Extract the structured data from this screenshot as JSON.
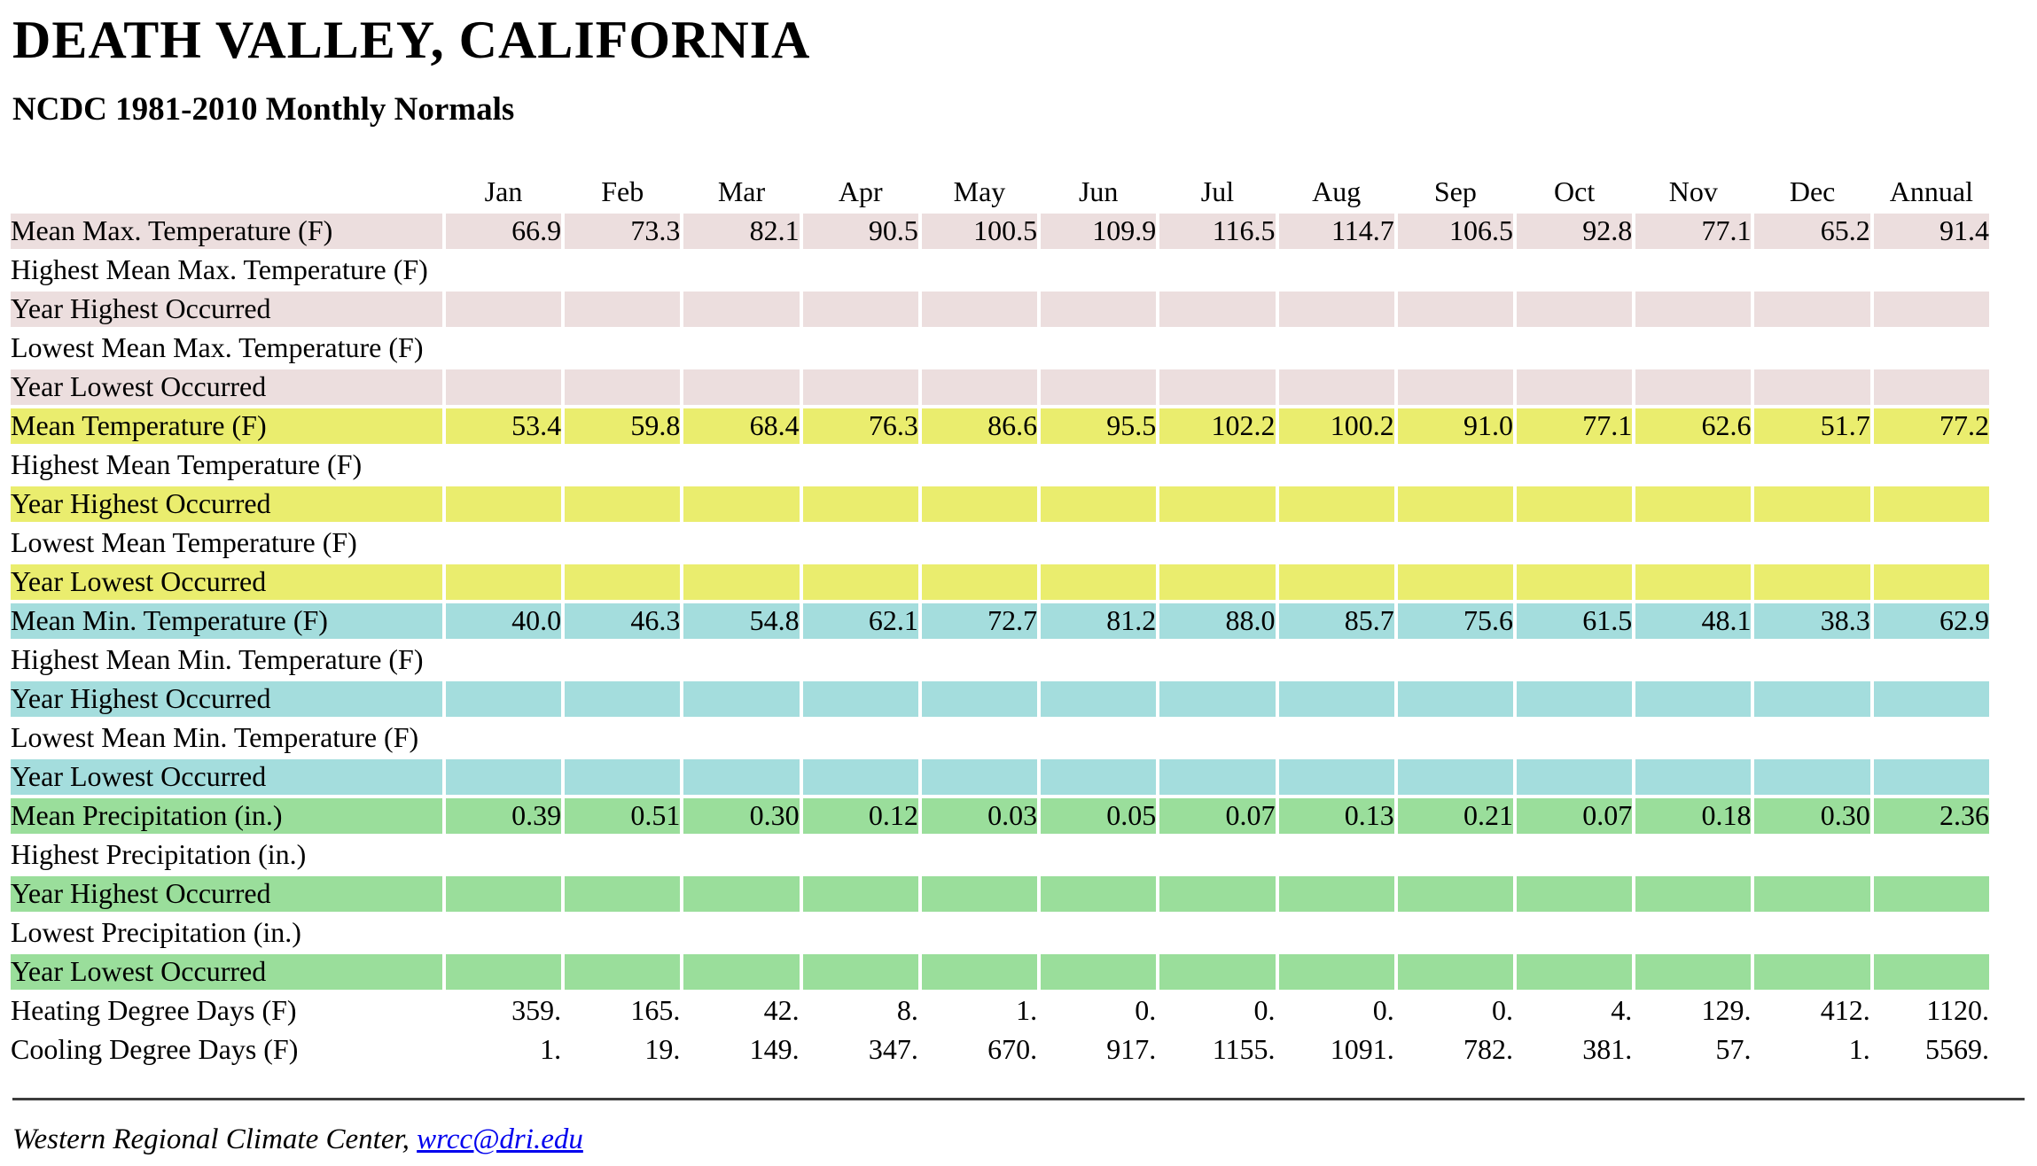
{
  "header": {
    "title": "DEATH VALLEY, CALIFORNIA",
    "subtitle": "NCDC 1981-2010 Monthly Normals"
  },
  "footer": {
    "credit_text": "Western Regional Climate Center,",
    "email_link": "wrcc@dri.edu"
  },
  "colors": {
    "max_temp_rows": "#ecdede",
    "mean_temp_rows": "#eaed6e",
    "min_temp_rows": "#a4dddd",
    "precip_rows": "#9ade9b",
    "plain_rows": "#ffffff",
    "link": "#0000ee",
    "rule": "#3d3d3d"
  },
  "chart_data": {
    "type": "table",
    "title": "DEATH VALLEY, CALIFORNIA — NCDC 1981-2010 Monthly Normals",
    "columns": [
      "Jan",
      "Feb",
      "Mar",
      "Apr",
      "May",
      "Jun",
      "Jul",
      "Aug",
      "Sep",
      "Oct",
      "Nov",
      "Dec",
      "Annual"
    ],
    "rows": [
      {
        "label": "Mean Max. Temperature (F)",
        "color_key": "max_temp_rows",
        "values": [
          "66.9",
          "73.3",
          "82.1",
          "90.5",
          "100.5",
          "109.9",
          "116.5",
          "114.7",
          "106.5",
          "92.8",
          "77.1",
          "65.2",
          "91.4"
        ]
      },
      {
        "label": "Highest Mean Max. Temperature (F)",
        "color_key": "plain_rows",
        "values": []
      },
      {
        "label": "Year Highest Occurred",
        "color_key": "max_temp_rows",
        "values": []
      },
      {
        "label": "Lowest Mean Max. Temperature (F)",
        "color_key": "plain_rows",
        "values": []
      },
      {
        "label": "Year Lowest Occurred",
        "color_key": "max_temp_rows",
        "values": []
      },
      {
        "label": "Mean Temperature (F)",
        "color_key": "mean_temp_rows",
        "values": [
          "53.4",
          "59.8",
          "68.4",
          "76.3",
          "86.6",
          "95.5",
          "102.2",
          "100.2",
          "91.0",
          "77.1",
          "62.6",
          "51.7",
          "77.2"
        ]
      },
      {
        "label": "Highest Mean Temperature (F)",
        "color_key": "plain_rows",
        "values": []
      },
      {
        "label": "Year Highest Occurred",
        "color_key": "mean_temp_rows",
        "values": []
      },
      {
        "label": "Lowest Mean Temperature (F)",
        "color_key": "plain_rows",
        "values": []
      },
      {
        "label": "Year Lowest Occurred",
        "color_key": "mean_temp_rows",
        "values": []
      },
      {
        "label": "Mean Min. Temperature (F)",
        "color_key": "min_temp_rows",
        "values": [
          "40.0",
          "46.3",
          "54.8",
          "62.1",
          "72.7",
          "81.2",
          "88.0",
          "85.7",
          "75.6",
          "61.5",
          "48.1",
          "38.3",
          "62.9"
        ]
      },
      {
        "label": "Highest Mean Min. Temperature (F)",
        "color_key": "plain_rows",
        "values": []
      },
      {
        "label": "Year Highest Occurred",
        "color_key": "min_temp_rows",
        "values": []
      },
      {
        "label": "Lowest Mean Min. Temperature (F)",
        "color_key": "plain_rows",
        "values": []
      },
      {
        "label": "Year Lowest Occurred",
        "color_key": "min_temp_rows",
        "values": []
      },
      {
        "label": "Mean Precipitation (in.)",
        "color_key": "precip_rows",
        "values": [
          "0.39",
          "0.51",
          "0.30",
          "0.12",
          "0.03",
          "0.05",
          "0.07",
          "0.13",
          "0.21",
          "0.07",
          "0.18",
          "0.30",
          "2.36"
        ]
      },
      {
        "label": "Highest Precipitation (in.)",
        "color_key": "plain_rows",
        "values": []
      },
      {
        "label": "Year Highest Occurred",
        "color_key": "precip_rows",
        "values": []
      },
      {
        "label": "Lowest Precipitation (in.)",
        "color_key": "plain_rows",
        "values": []
      },
      {
        "label": "Year Lowest Occurred",
        "color_key": "precip_rows",
        "values": []
      },
      {
        "label": "Heating Degree Days (F)",
        "color_key": "plain_rows",
        "values": [
          "359.",
          "165.",
          "42.",
          "8.",
          "1.",
          "0.",
          "0.",
          "0.",
          "0.",
          "4.",
          "129.",
          "412.",
          "1120."
        ]
      },
      {
        "label": "Cooling Degree Days (F)",
        "color_key": "plain_rows",
        "values": [
          "1.",
          "19.",
          "149.",
          "347.",
          "670.",
          "917.",
          "1155.",
          "1091.",
          "782.",
          "381.",
          "57.",
          "1.",
          "5569."
        ]
      }
    ]
  }
}
